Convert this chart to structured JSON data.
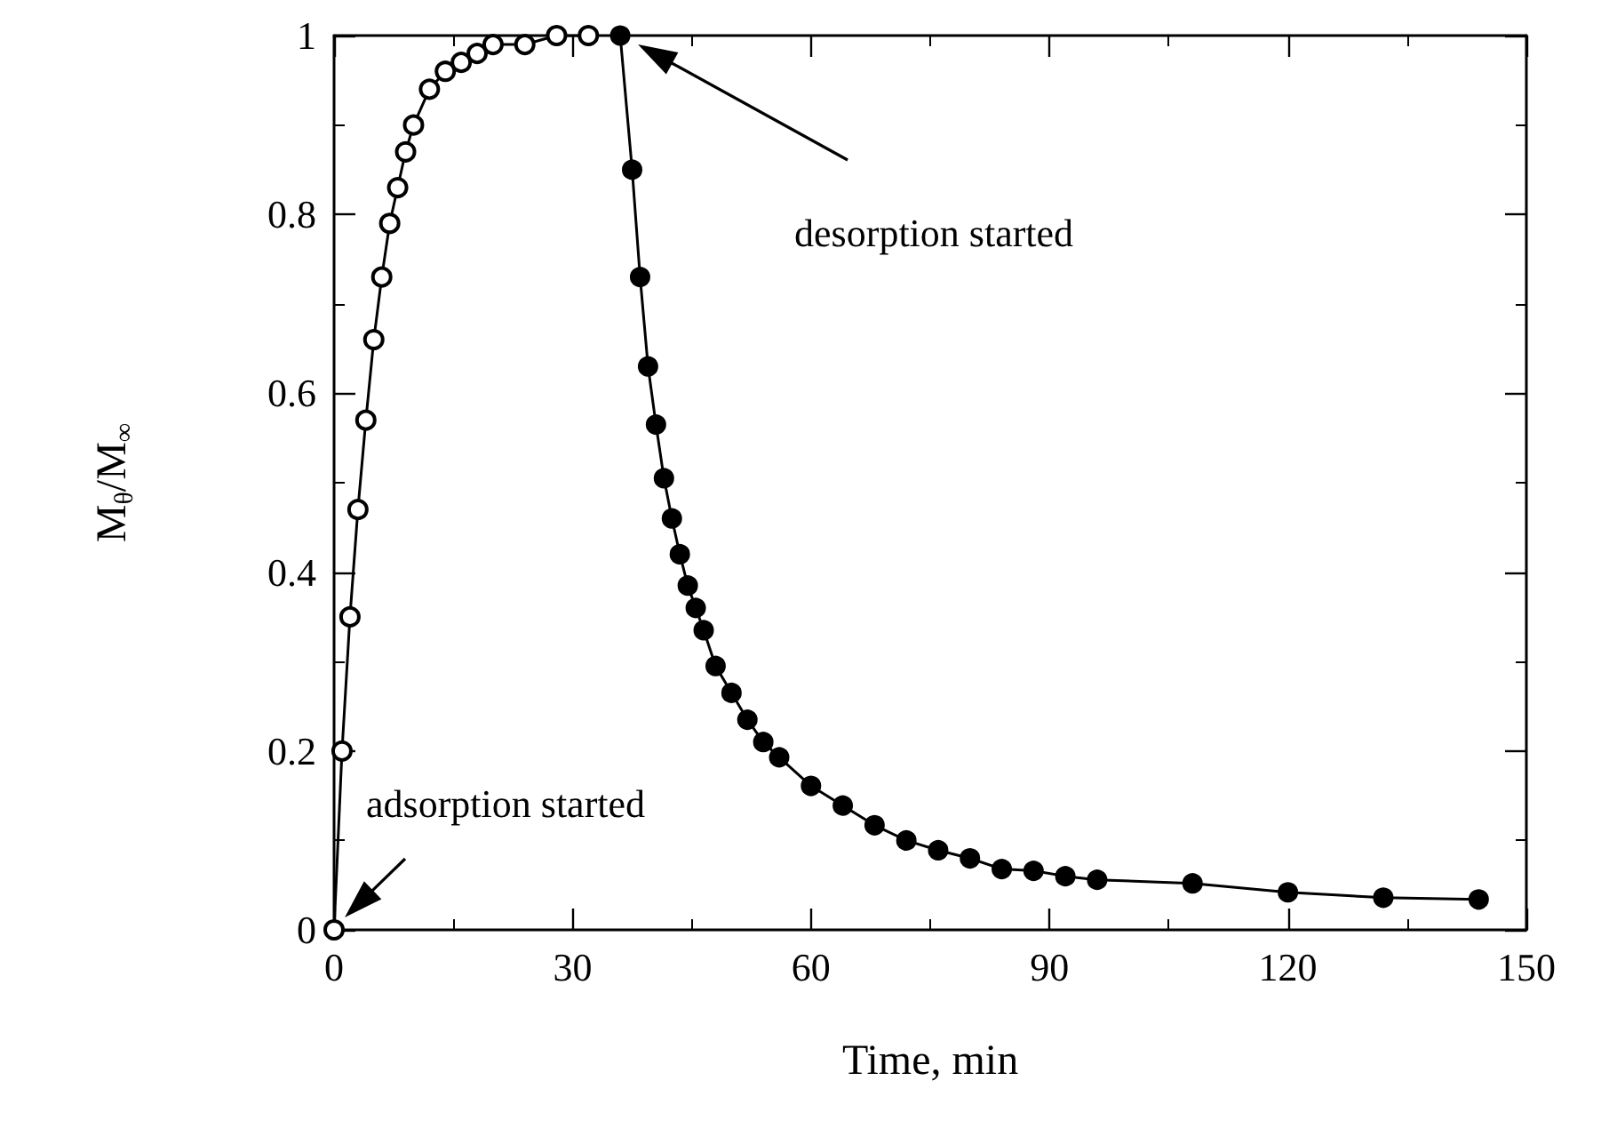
{
  "chart_data": {
    "type": "line",
    "xlabel": "Time, min",
    "ylabel": "M$_{θ}$/M$_{∞}$",
    "xlim": [
      0,
      150
    ],
    "ylim": [
      0,
      1
    ],
    "xticks": [
      0,
      30,
      60,
      90,
      120,
      150
    ],
    "yticks": [
      0,
      0.2,
      0.4,
      0.6,
      0.8,
      1
    ],
    "grid": false,
    "marker": "circle",
    "line_style": "solid",
    "series": [
      {
        "color": "#000000",
        "x": [
          0,
          1,
          2,
          3,
          4,
          5,
          6,
          7,
          8,
          9,
          10,
          12,
          14,
          16,
          18,
          20,
          24,
          28,
          32
        ],
        "values": [
          0,
          0.2,
          0.35,
          0.47,
          0.57,
          0.66,
          0.73,
          0.79,
          0.83,
          0.87,
          0.9,
          0.94,
          0.96,
          0.97,
          0.98,
          0.99,
          0.99,
          1,
          1
        ]
      },
      {
        "color": "#000000",
        "x": [
          36,
          37.5,
          38.5,
          39.5,
          40.5,
          41.5,
          42.5,
          43.5,
          44.5,
          45.5,
          46.5,
          48,
          50,
          52,
          54,
          56,
          60,
          64,
          68,
          72,
          76,
          80,
          84,
          88,
          92,
          96,
          108,
          120,
          132,
          144
        ],
        "values": [
          1,
          0.85,
          0.73,
          0.63,
          0.565,
          0.505,
          0.46,
          0.42,
          0.385,
          0.36,
          0.335,
          0.295,
          0.265,
          0.235,
          0.21,
          0.193,
          0.161,
          0.139,
          0.117,
          0.1,
          0.089,
          0.08,
          0.068,
          0.066,
          0.06,
          0.056,
          0.052,
          0.042,
          0.036,
          0.034
        ]
      }
    ],
    "annotations": [
      "adsorption started",
      "desorption started"
    ]
  }
}
